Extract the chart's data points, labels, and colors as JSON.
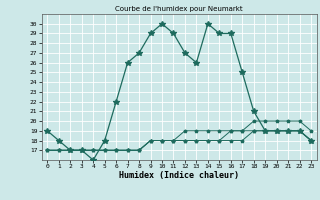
{
  "title": "Courbe de l'humidex pour Neumarkt",
  "xlabel": "Humidex (Indice chaleur)",
  "background_color": "#cde8e8",
  "grid_color": "#ffffff",
  "line_color": "#1e6b5e",
  "xlim": [
    -0.5,
    23.5
  ],
  "ylim": [
    16,
    31
  ],
  "yticks": [
    17,
    18,
    19,
    20,
    21,
    22,
    23,
    24,
    25,
    26,
    27,
    28,
    29,
    30
  ],
  "xticks": [
    0,
    1,
    2,
    3,
    4,
    5,
    6,
    7,
    8,
    9,
    10,
    11,
    12,
    13,
    14,
    15,
    16,
    17,
    18,
    19,
    20,
    21,
    22,
    23
  ],
  "series1_x": [
    0,
    1,
    2,
    3,
    4,
    5,
    6,
    7,
    8,
    9,
    10,
    11,
    12,
    13,
    14,
    15,
    16,
    17,
    18,
    19,
    20,
    21,
    22,
    23
  ],
  "series1_y": [
    19,
    18,
    17,
    17,
    16,
    18,
    22,
    26,
    27,
    29,
    30,
    29,
    27,
    26,
    30,
    29,
    29,
    25,
    21,
    19,
    19,
    19,
    19,
    18
  ],
  "series2_x": [
    0,
    1,
    2,
    3,
    4,
    5,
    6,
    7,
    8,
    9,
    10,
    11,
    12,
    13,
    14,
    15,
    16,
    17,
    18,
    19,
    20,
    21,
    22,
    23
  ],
  "series2_y": [
    17,
    17,
    17,
    17,
    17,
    17,
    17,
    17,
    17,
    18,
    18,
    18,
    18,
    18,
    18,
    18,
    18,
    18,
    19,
    19,
    19,
    19,
    19,
    18
  ],
  "series3_x": [
    0,
    1,
    2,
    3,
    4,
    5,
    6,
    7,
    8,
    9,
    10,
    11,
    12,
    13,
    14,
    15,
    16,
    17,
    18,
    19,
    20,
    21,
    22,
    23
  ],
  "series3_y": [
    17,
    17,
    17,
    17,
    17,
    17,
    17,
    17,
    17,
    18,
    18,
    18,
    19,
    19,
    19,
    19,
    19,
    19,
    19,
    19,
    19,
    19,
    19,
    18
  ],
  "series4_x": [
    0,
    1,
    2,
    3,
    4,
    5,
    6,
    7,
    8,
    9,
    10,
    11,
    12,
    13,
    14,
    15,
    16,
    17,
    18,
    19,
    20,
    21,
    22,
    23
  ],
  "series4_y": [
    17,
    17,
    17,
    17,
    17,
    17,
    17,
    17,
    17,
    18,
    18,
    18,
    18,
    18,
    18,
    18,
    19,
    19,
    20,
    20,
    20,
    20,
    20,
    19
  ]
}
